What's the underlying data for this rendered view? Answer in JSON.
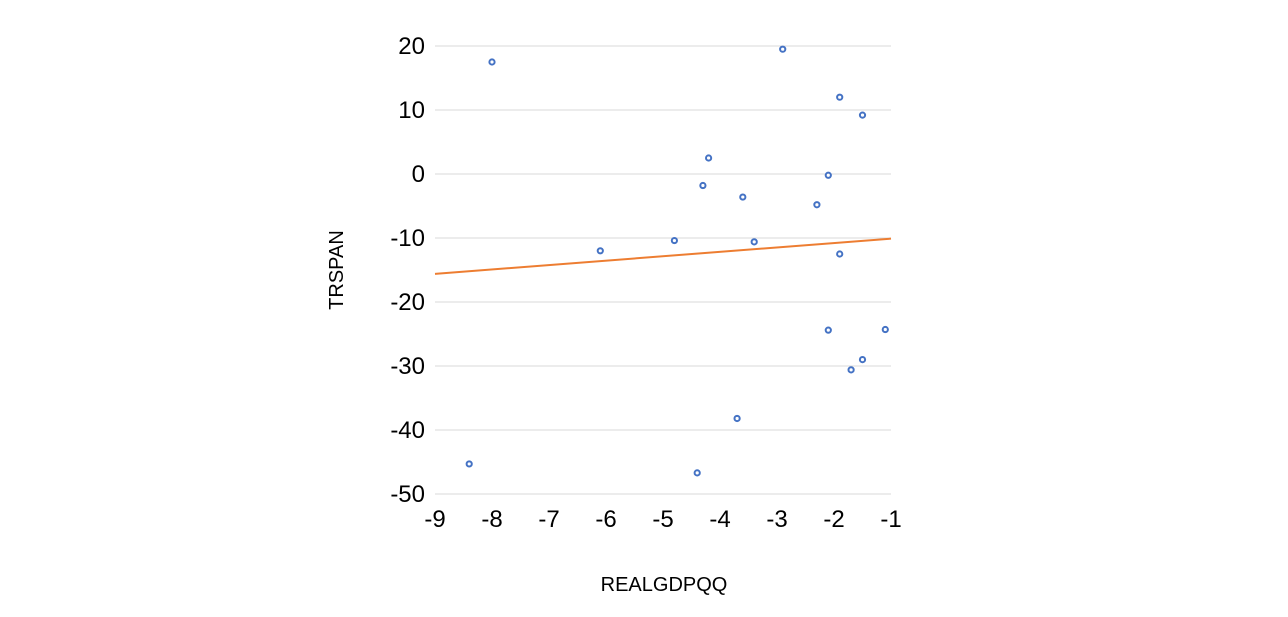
{
  "chart_data": {
    "type": "scatter",
    "title": "",
    "xlabel": "REALGDPQQ",
    "ylabel": "TRSPAN",
    "xlim": [
      -9,
      -1
    ],
    "ylim": [
      -50,
      20
    ],
    "xticks": [
      -9,
      -8,
      -7,
      -6,
      -5,
      -4,
      -3,
      -2,
      -1
    ],
    "yticks": [
      -50,
      -40,
      -30,
      -20,
      -10,
      0,
      10,
      20
    ],
    "xtick_labels": [
      "-9",
      "-8",
      "-7",
      "-6",
      "-5",
      "-4",
      "-3",
      "-2",
      "-1"
    ],
    "ytick_labels": [
      "-50",
      "-40",
      "-30",
      "-20",
      "-10",
      "0",
      "10",
      "20"
    ],
    "grid": "horizontal",
    "legend": "none",
    "series": [
      {
        "points": [
          {
            "x": -8.4,
            "y": -45.3
          },
          {
            "x": -8.0,
            "y": 17.5
          },
          {
            "x": -6.1,
            "y": -12.0
          },
          {
            "x": -4.8,
            "y": -10.4
          },
          {
            "x": -4.4,
            "y": -46.7
          },
          {
            "x": -4.3,
            "y": -1.8
          },
          {
            "x": -4.2,
            "y": 2.5
          },
          {
            "x": -3.7,
            "y": -38.2
          },
          {
            "x": -3.6,
            "y": -3.6
          },
          {
            "x": -3.4,
            "y": -10.6
          },
          {
            "x": -2.9,
            "y": 19.5
          },
          {
            "x": -2.3,
            "y": -4.8
          },
          {
            "x": -2.1,
            "y": -0.2
          },
          {
            "x": -2.1,
            "y": -24.4
          },
          {
            "x": -1.9,
            "y": 12.0
          },
          {
            "x": -1.9,
            "y": -12.5
          },
          {
            "x": -1.7,
            "y": -30.6
          },
          {
            "x": -1.5,
            "y": 9.2
          },
          {
            "x": -1.5,
            "y": -29.0
          },
          {
            "x": -1.1,
            "y": -24.3
          }
        ]
      }
    ],
    "trendline": {
      "type": "linear",
      "x": [
        -9,
        -1
      ],
      "y": [
        -15.6,
        -10.1
      ]
    },
    "colors": {
      "points": "#4472c4",
      "trendline": "#ed7d31",
      "grid": "#d9d9d9",
      "text": "#000000"
    }
  }
}
